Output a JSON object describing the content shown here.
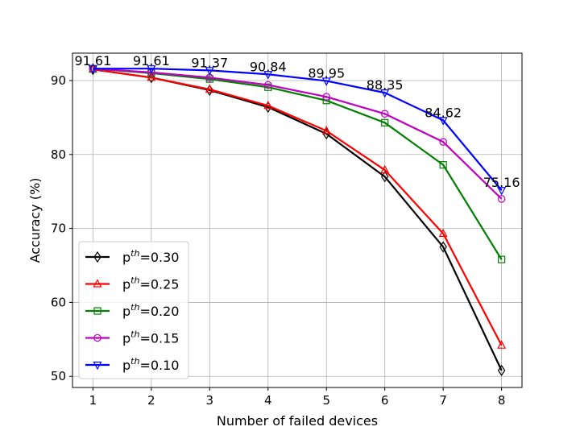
{
  "chart_data": {
    "type": "line",
    "xlabel": "Number of failed devices",
    "ylabel": "Accuracy (%)",
    "x": [
      1,
      2,
      3,
      4,
      5,
      6,
      7,
      8
    ],
    "xlim": [
      0.65,
      8.35
    ],
    "ylim": [
      48.5,
      93.7
    ],
    "yticks": [
      50,
      60,
      70,
      80,
      90
    ],
    "grid": true,
    "legend_position": "bottom-left",
    "series": [
      {
        "name": "p^th=0.30",
        "name_base": "p",
        "name_sup": "th",
        "name_rest": "=0.30",
        "color": "#000000",
        "marker": "diamond",
        "values": [
          91.5,
          90.4,
          88.7,
          86.4,
          82.8,
          77.0,
          67.5,
          50.8
        ]
      },
      {
        "name": "p^th=0.25",
        "name_base": "p",
        "name_sup": "th",
        "name_rest": "=0.25",
        "color": "#ff0000",
        "marker": "triangle-up",
        "values": [
          91.5,
          90.4,
          88.8,
          86.6,
          83.2,
          77.9,
          69.3,
          54.2
        ]
      },
      {
        "name": "p^th=0.20",
        "name_base": "p",
        "name_sup": "th",
        "name_rest": "=0.20",
        "color": "#008000",
        "marker": "square",
        "values": [
          91.6,
          91.0,
          90.2,
          89.1,
          87.3,
          84.3,
          78.6,
          65.8
        ]
      },
      {
        "name": "p^th=0.15",
        "name_base": "p",
        "name_sup": "th",
        "name_rest": "=0.15",
        "color": "#bf00bf",
        "marker": "circle",
        "values": [
          91.6,
          91.1,
          90.4,
          89.4,
          87.8,
          85.5,
          81.7,
          74.0
        ]
      },
      {
        "name": "p^th=0.10",
        "name_base": "p",
        "name_sup": "th",
        "name_rest": "=0.10",
        "color": "#0000ff",
        "marker": "triangle-down",
        "values": [
          91.61,
          91.61,
          91.37,
          90.84,
          89.95,
          88.35,
          84.62,
          75.16
        ]
      }
    ],
    "annotations": [
      {
        "x": 1,
        "y": 91.61,
        "text": "91.61"
      },
      {
        "x": 2,
        "y": 91.61,
        "text": "91.61"
      },
      {
        "x": 3,
        "y": 91.37,
        "text": "91.37"
      },
      {
        "x": 4,
        "y": 90.84,
        "text": "90.84"
      },
      {
        "x": 5,
        "y": 89.95,
        "text": "89.95"
      },
      {
        "x": 6,
        "y": 88.35,
        "text": "88.35"
      },
      {
        "x": 7,
        "y": 84.62,
        "text": "84.62"
      },
      {
        "x": 8,
        "y": 75.16,
        "text": "75.16"
      }
    ]
  }
}
